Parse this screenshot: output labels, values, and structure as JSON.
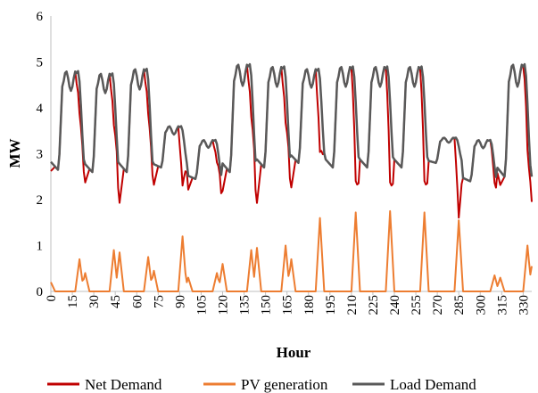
{
  "chart_data": {
    "type": "line",
    "title": "",
    "xlabel": "Hour",
    "ylabel": "MW",
    "ylim": [
      0,
      6
    ],
    "xlim": [
      0,
      336
    ],
    "yticks": [
      "0",
      "1",
      "2",
      "3",
      "4",
      "5",
      "6"
    ],
    "xticks": [
      "0",
      "15",
      "30",
      "45",
      "60",
      "75",
      "90",
      "105",
      "120",
      "135",
      "150",
      "165",
      "180",
      "195",
      "210",
      "225",
      "240",
      "255",
      "270",
      "285",
      "300",
      "315",
      "330"
    ],
    "grid": false,
    "legend_position": "bottom",
    "series": [
      {
        "name": "Load Demand",
        "color": "#595959",
        "days": [
          {
            "min": 2.65,
            "peak": 4.8
          },
          {
            "min": 2.6,
            "peak": 4.75
          },
          {
            "min": 2.6,
            "peak": 4.85
          },
          {
            "min": 2.7,
            "peak": 3.6
          },
          {
            "min": 2.45,
            "peak": 3.3
          },
          {
            "min": 2.6,
            "peak": 4.95
          },
          {
            "min": 2.7,
            "peak": 4.9
          },
          {
            "min": 2.8,
            "peak": 4.85
          },
          {
            "min": 2.7,
            "peak": 4.9
          },
          {
            "min": 2.7,
            "peak": 4.9
          },
          {
            "min": 2.7,
            "peak": 4.9
          },
          {
            "min": 2.8,
            "peak": 3.35
          },
          {
            "min": 2.4,
            "peak": 3.3
          },
          {
            "min": 2.5,
            "peak": 4.95
          }
        ]
      },
      {
        "name": "Net Demand",
        "color": "#c00000",
        "description": "Load Demand minus PV generation"
      },
      {
        "name": "PV generation",
        "color": "#ed7d31",
        "peaks": [
          {
            "hour": 0,
            "value": 0.2
          },
          {
            "hour": 20,
            "value": 0.7
          },
          {
            "hour": 24,
            "value": 0.4
          },
          {
            "hour": 44,
            "value": 0.9
          },
          {
            "hour": 48,
            "value": 0.85
          },
          {
            "hour": 68,
            "value": 0.75
          },
          {
            "hour": 72,
            "value": 0.45
          },
          {
            "hour": 92,
            "value": 1.2
          },
          {
            "hour": 96,
            "value": 0.3
          },
          {
            "hour": 116,
            "value": 0.4
          },
          {
            "hour": 120,
            "value": 0.6
          },
          {
            "hour": 140,
            "value": 0.9
          },
          {
            "hour": 144,
            "value": 0.95
          },
          {
            "hour": 164,
            "value": 1.0
          },
          {
            "hour": 168,
            "value": 0.7
          },
          {
            "hour": 188,
            "value": 1.6
          },
          {
            "hour": 213,
            "value": 1.72
          },
          {
            "hour": 237,
            "value": 1.75
          },
          {
            "hour": 261,
            "value": 1.72
          },
          {
            "hour": 285,
            "value": 1.55
          },
          {
            "hour": 310,
            "value": 0.35
          },
          {
            "hour": 314,
            "value": 0.3
          },
          {
            "hour": 333,
            "value": 1.0
          },
          {
            "hour": 336,
            "value": 0.55
          }
        ]
      }
    ]
  }
}
